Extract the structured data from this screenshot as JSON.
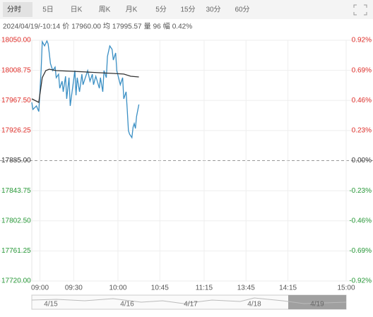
{
  "tabs": [
    "分时",
    "5日",
    "日K",
    "周K",
    "月K",
    "5分",
    "15分",
    "30分",
    "60分"
  ],
  "info": {
    "time": "2024/04/19/-10:14",
    "price_label": "价",
    "price": "17960.00",
    "avg_label": "均",
    "avg": "17995.57",
    "vol_label": "量",
    "vol": "96",
    "range_label": "幅",
    "range": "0.42%"
  },
  "chart_data": {
    "type": "line",
    "xlim": [
      0,
      270
    ],
    "xticks": [
      {
        "value": 7,
        "label": "09:00"
      },
      {
        "value": 36,
        "label": "09:30"
      },
      {
        "value": 74,
        "label": "10:00"
      },
      {
        "value": 110,
        "label": "10:45"
      },
      {
        "value": 148,
        "label": "11:15"
      },
      {
        "value": 184,
        "label": "13:45"
      },
      {
        "value": 220,
        "label": "14:15"
      },
      {
        "value": 270,
        "label": "15:00"
      }
    ],
    "ylim": [
      17720,
      18050
    ],
    "yticks": [
      {
        "value": 18050,
        "label": "18050.00"
      },
      {
        "value": 18008.75,
        "label": "18008.75"
      },
      {
        "value": 17967.5,
        "label": "17967.50"
      },
      {
        "value": 17926.25,
        "label": "17926.25"
      },
      {
        "value": 17885,
        "label": "17885.00"
      },
      {
        "value": 17843.75,
        "label": "17843.75"
      },
      {
        "value": 17802.5,
        "label": "17802.50"
      },
      {
        "value": 17761.25,
        "label": "17761.25"
      },
      {
        "value": 17720,
        "label": "17720.00"
      }
    ],
    "y2lim": [
      -0.92,
      0.92
    ],
    "y2ticks": [
      {
        "value": 0.92,
        "label": "0.92%"
      },
      {
        "value": 0.69,
        "label": "0.69%"
      },
      {
        "value": 0.46,
        "label": "0.46%"
      },
      {
        "value": 0.23,
        "label": "0.23%"
      },
      {
        "value": 0,
        "label": "0.00%"
      },
      {
        "value": -0.23,
        "label": "-0.23%"
      },
      {
        "value": -0.46,
        "label": "-0.46%"
      },
      {
        "value": -0.69,
        "label": "-0.69%"
      },
      {
        "value": -0.92,
        "label": "-0.92%"
      }
    ],
    "series": [
      {
        "color": "#3a8fc4",
        "x": [
          0,
          1,
          4,
          6,
          8,
          9,
          11,
          13,
          14,
          15,
          16,
          18,
          20,
          21,
          23,
          24,
          26,
          27,
          29,
          30,
          32,
          33,
          35,
          37,
          38,
          39,
          41,
          43,
          44,
          46,
          48,
          50,
          52,
          53,
          55,
          58,
          59,
          61,
          62,
          64,
          65,
          67,
          69,
          70,
          72,
          73,
          76,
          78,
          79,
          81,
          82,
          83,
          84,
          86,
          87,
          88,
          89,
          90,
          92
        ],
        "values": [
          17964.8,
          17955.2,
          17960.0,
          17952.3,
          18008.4,
          18048.0,
          18042.3,
          18049.0,
          18045.2,
          18032.6,
          18018.1,
          18008.4,
          18013.2,
          17998.7,
          18003.5,
          17984.2,
          17993.9,
          17979.4,
          18000.6,
          17969.7,
          17998.7,
          17960.0,
          17984.2,
          18008.4,
          17974.5,
          17998.7,
          17979.4,
          18003.5,
          17989.0,
          17998.7,
          18008.4,
          17993.9,
          18003.5,
          17989.0,
          18000.6,
          17984.2,
          17998.7,
          17979.4,
          18008.4,
          17998.7,
          18027.7,
          18042.3,
          18037.4,
          18022.9,
          18032.6,
          18008.4,
          17989.0,
          17998.7,
          17969.7,
          17979.4,
          17955.2,
          17926.1,
          17921.3,
          17916.5,
          17931.0,
          17935.8,
          17929.0,
          17945.5,
          17961.9
        ]
      },
      {
        "color": "#333333",
        "x": [
          0,
          6,
          9,
          12,
          15,
          21,
          33,
          46,
          58,
          70,
          79,
          85,
          92
        ],
        "values": [
          17969.7,
          17964.8,
          17998.7,
          18008.4,
          18010.3,
          18008.4,
          18007.5,
          18006.5,
          18005.5,
          18004.5,
          18003.6,
          18000.6,
          17999.7
        ]
      }
    ],
    "navigator": [
      "4/15",
      "4/16",
      "4/17",
      "4/18",
      "4/19"
    ]
  }
}
